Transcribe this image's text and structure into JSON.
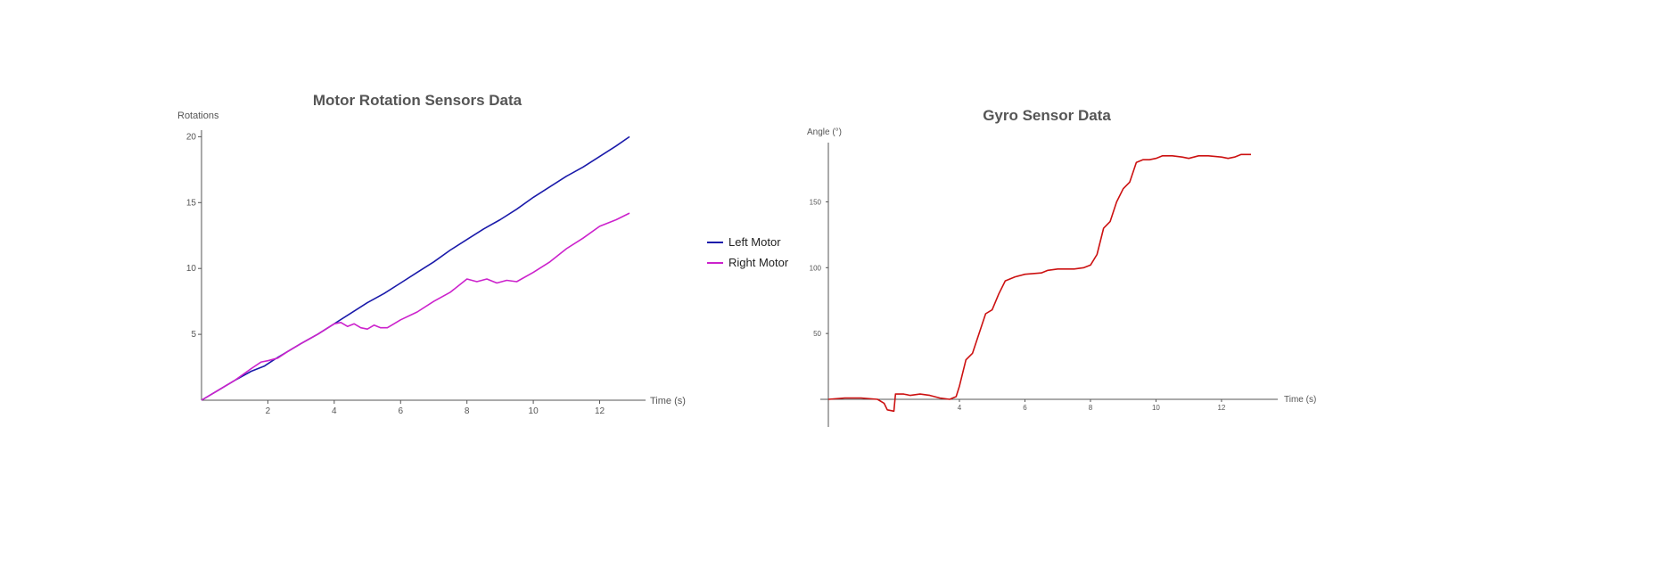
{
  "chart_data": [
    {
      "type": "line",
      "title": "Motor Rotation Sensors Data",
      "xlabel": "Time (s)",
      "ylabel": "Rotations",
      "xlim": [
        0,
        12.9
      ],
      "ylim": [
        0,
        20.5
      ],
      "x_ticks": [
        2,
        4,
        6,
        8,
        10,
        12
      ],
      "y_ticks": [
        5,
        10,
        15,
        20
      ],
      "legend_position": "right",
      "grid": false,
      "series": [
        {
          "name": "Left Motor",
          "color": "#1a1aaa",
          "points": [
            [
              0,
              0
            ],
            [
              0.5,
              0.75
            ],
            [
              1,
              1.5
            ],
            [
              1.5,
              2.2
            ],
            [
              1.9,
              2.6
            ],
            [
              2.2,
              3.1
            ],
            [
              2.6,
              3.7
            ],
            [
              3,
              4.3
            ],
            [
              3.5,
              5.0
            ],
            [
              4,
              5.8
            ],
            [
              4.5,
              6.6
            ],
            [
              5,
              7.4
            ],
            [
              5.5,
              8.1
            ],
            [
              6,
              8.9
            ],
            [
              6.5,
              9.7
            ],
            [
              7,
              10.5
            ],
            [
              7.5,
              11.4
            ],
            [
              8,
              12.2
            ],
            [
              8.5,
              13.0
            ],
            [
              9,
              13.7
            ],
            [
              9.5,
              14.5
            ],
            [
              10,
              15.4
            ],
            [
              10.5,
              16.2
            ],
            [
              11,
              17.0
            ],
            [
              11.5,
              17.7
            ],
            [
              12,
              18.5
            ],
            [
              12.5,
              19.3
            ],
            [
              12.9,
              20.0
            ]
          ]
        },
        {
          "name": "Right Motor",
          "color": "#cc22cc",
          "points": [
            [
              0,
              0
            ],
            [
              0.5,
              0.75
            ],
            [
              1,
              1.5
            ],
            [
              1.5,
              2.4
            ],
            [
              1.8,
              2.9
            ],
            [
              2,
              3.0
            ],
            [
              2.3,
              3.2
            ],
            [
              2.6,
              3.7
            ],
            [
              3,
              4.3
            ],
            [
              3.5,
              5.0
            ],
            [
              4,
              5.8
            ],
            [
              4.2,
              5.9
            ],
            [
              4.4,
              5.6
            ],
            [
              4.6,
              5.8
            ],
            [
              4.8,
              5.5
            ],
            [
              5,
              5.4
            ],
            [
              5.2,
              5.7
            ],
            [
              5.4,
              5.5
            ],
            [
              5.6,
              5.5
            ],
            [
              5.8,
              5.8
            ],
            [
              6,
              6.1
            ],
            [
              6.5,
              6.7
            ],
            [
              7,
              7.5
            ],
            [
              7.5,
              8.2
            ],
            [
              8,
              9.2
            ],
            [
              8.3,
              9.0
            ],
            [
              8.6,
              9.2
            ],
            [
              8.9,
              8.9
            ],
            [
              9.2,
              9.1
            ],
            [
              9.5,
              9.0
            ],
            [
              10,
              9.7
            ],
            [
              10.5,
              10.5
            ],
            [
              11,
              11.5
            ],
            [
              11.5,
              12.3
            ],
            [
              12,
              13.2
            ],
            [
              12.5,
              13.7
            ],
            [
              12.9,
              14.2
            ]
          ]
        }
      ]
    },
    {
      "type": "line",
      "title": "Gyro Sensor Data",
      "xlabel": "Time (s)",
      "ylabel": "Angle (°)",
      "xlim": [
        0,
        12.9
      ],
      "ylim": [
        -20,
        195
      ],
      "x_ticks": [
        4,
        6,
        8,
        10,
        12
      ],
      "y_ticks": [
        50,
        100,
        150
      ],
      "grid": false,
      "series": [
        {
          "name": "",
          "color": "#cc1111",
          "points": [
            [
              0,
              0
            ],
            [
              0.5,
              1
            ],
            [
              1,
              1
            ],
            [
              1.5,
              0
            ],
            [
              1.7,
              -3
            ],
            [
              1.8,
              -8
            ],
            [
              2,
              -9
            ],
            [
              2.05,
              4
            ],
            [
              2.3,
              4
            ],
            [
              2.5,
              3
            ],
            [
              2.8,
              4
            ],
            [
              3.1,
              3
            ],
            [
              3.4,
              1
            ],
            [
              3.7,
              0
            ],
            [
              3.9,
              2
            ],
            [
              4.0,
              10
            ],
            [
              4.2,
              30
            ],
            [
              4.4,
              35
            ],
            [
              4.6,
              50
            ],
            [
              4.8,
              65
            ],
            [
              5.0,
              68
            ],
            [
              5.2,
              80
            ],
            [
              5.4,
              90
            ],
            [
              5.7,
              93
            ],
            [
              6.0,
              95
            ],
            [
              6.5,
              96
            ],
            [
              6.7,
              98
            ],
            [
              7,
              99
            ],
            [
              7.5,
              99
            ],
            [
              7.8,
              100
            ],
            [
              8.0,
              102
            ],
            [
              8.2,
              110
            ],
            [
              8.4,
              130
            ],
            [
              8.6,
              135
            ],
            [
              8.8,
              150
            ],
            [
              9.0,
              160
            ],
            [
              9.2,
              165
            ],
            [
              9.4,
              180
            ],
            [
              9.6,
              182
            ],
            [
              9.8,
              182
            ],
            [
              10,
              183
            ],
            [
              10.2,
              185
            ],
            [
              10.5,
              185
            ],
            [
              10.8,
              184
            ],
            [
              11.0,
              183
            ],
            [
              11.3,
              185
            ],
            [
              11.6,
              185
            ],
            [
              12.0,
              184
            ],
            [
              12.2,
              183
            ],
            [
              12.4,
              184
            ],
            [
              12.6,
              186
            ],
            [
              12.9,
              186
            ]
          ]
        }
      ]
    }
  ]
}
